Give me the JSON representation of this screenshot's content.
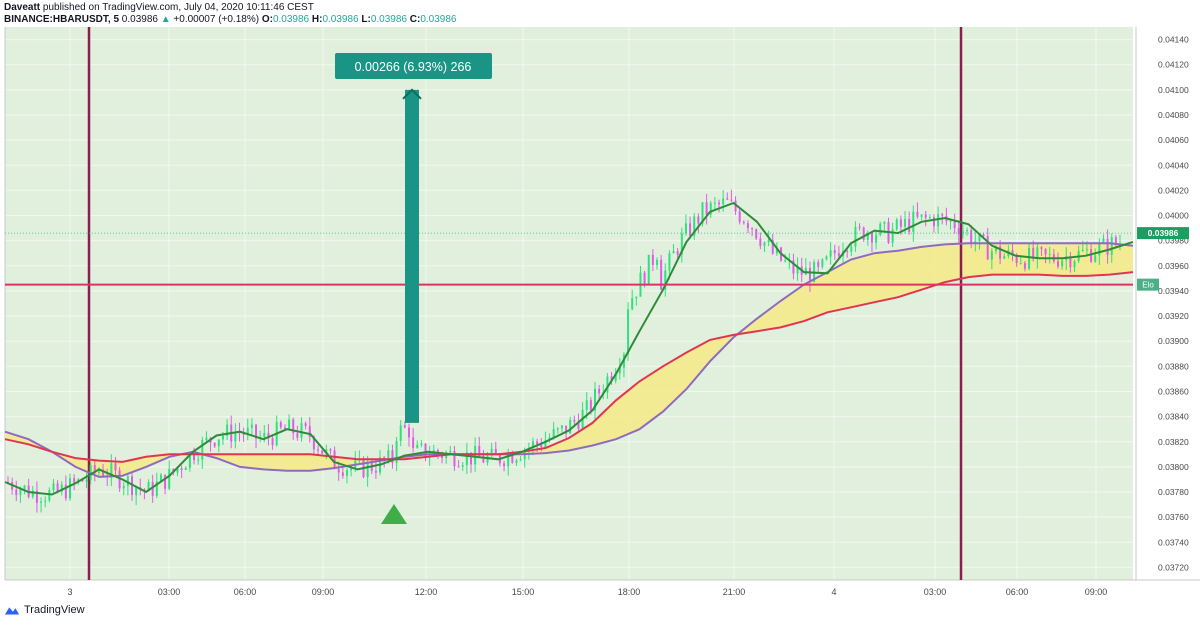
{
  "header": {
    "author": "Daveatt",
    "published_text": "published on TradingView.com, July 04, 2020 10:11:46 CEST",
    "symbol": "BINANCE:HBARUSDT, 5",
    "last_price": "0.03986",
    "change_arrow": "▲",
    "change": "+0.00007 (+0.18%)",
    "o_label": "O:",
    "o_value": "0.03986",
    "h_label": "H:",
    "h_value": "0.03986",
    "l_label": "L:",
    "l_value": "0.03986",
    "c_label": "C:",
    "c_value": "0.03986"
  },
  "footer": {
    "brand": "TradingView"
  },
  "chart_data": {
    "type": "line",
    "title": "",
    "xlabel": "",
    "ylabel": "",
    "ylim": [
      0.0371,
      0.0415
    ],
    "x_tick_labels": [
      "3",
      "03:00",
      "06:00",
      "09:00",
      "12:00",
      "15:00",
      "18:00",
      "21:00",
      "4",
      "03:00",
      "06:00",
      "09:00"
    ],
    "y_tick_labels": [
      "0.04140",
      "0.04120",
      "0.04100",
      "0.04080",
      "0.04060",
      "0.04040",
      "0.04020",
      "0.04000",
      "0.03980",
      "0.03960",
      "0.03940",
      "0.03920",
      "0.03900",
      "0.03880",
      "0.03860",
      "0.03840",
      "0.03820",
      "0.03800",
      "0.03780",
      "0.03760",
      "0.03740",
      "0.03720"
    ],
    "y_ticks": [
      0.0414,
      0.0412,
      0.041,
      0.0408,
      0.0406,
      0.0404,
      0.0402,
      0.04,
      0.0398,
      0.0396,
      0.0394,
      0.0392,
      0.039,
      0.0388,
      0.0386,
      0.0384,
      0.0382,
      0.038,
      0.0378,
      0.0376,
      0.0374,
      0.0372
    ],
    "current_price": 0.03986,
    "current_price_label": "0.03986",
    "support_level": 0.03945,
    "support_label": "Elo",
    "measure_label": "0.00266 (6.93%) 266",
    "measure_from": 0.03835,
    "measure_to": 0.041,
    "grid": true,
    "colors": {
      "background": "#e1f0dc",
      "candle_up": "#2fe07e",
      "candle_down": "#e05ce6",
      "ma_fast": "#2e8b3a",
      "ma_mid": "#e03552",
      "ma_slow": "#8e6bbf",
      "cloud": "#f5ea86",
      "vline": "#8a1e4e",
      "hline": "#e0306a",
      "measure": "#1a9484",
      "signal": "#3fae49"
    },
    "series": [
      {
        "name": "",
        "role": "ma_fast",
        "values": [
          0.03788,
          0.0378,
          0.03778,
          0.03787,
          0.03798,
          0.0379,
          0.0378,
          0.03793,
          0.03812,
          0.03825,
          0.03828,
          0.03822,
          0.0383,
          0.03826,
          0.03804,
          0.03798,
          0.03802,
          0.03809,
          0.03812,
          0.0381,
          0.03808,
          0.03806,
          0.03812,
          0.0382,
          0.03829,
          0.03845,
          0.03874,
          0.03908,
          0.03941,
          0.03979,
          0.04003,
          0.0401,
          0.03995,
          0.0397,
          0.03955,
          0.03954,
          0.03978,
          0.03988,
          0.03986,
          0.03995,
          0.03998,
          0.03993,
          0.03976,
          0.03968,
          0.03966,
          0.03966,
          0.03968,
          0.03973,
          0.03979
        ]
      },
      {
        "name": "",
        "role": "ma_mid",
        "values": [
          0.03822,
          0.03818,
          0.03812,
          0.03807,
          0.03805,
          0.03804,
          0.03808,
          0.0381,
          0.0381,
          0.0381,
          0.0381,
          0.0381,
          0.0381,
          0.0381,
          0.03808,
          0.03806,
          0.03806,
          0.03806,
          0.03808,
          0.0381,
          0.0381,
          0.0381,
          0.03812,
          0.03815,
          0.03823,
          0.03835,
          0.03853,
          0.03868,
          0.0388,
          0.03891,
          0.03901,
          0.03905,
          0.03908,
          0.03911,
          0.03916,
          0.03923,
          0.03927,
          0.03931,
          0.03935,
          0.03941,
          0.03947,
          0.03951,
          0.03953,
          0.03953,
          0.03953,
          0.03952,
          0.03952,
          0.03953,
          0.03955
        ]
      },
      {
        "name": "",
        "role": "ma_slow",
        "values": [
          0.03828,
          0.03822,
          0.03812,
          0.038,
          0.03792,
          0.03793,
          0.038,
          0.03808,
          0.03812,
          0.03807,
          0.038,
          0.03798,
          0.03797,
          0.03797,
          0.03799,
          0.03802,
          0.03805,
          0.03808,
          0.0381,
          0.0381,
          0.0381,
          0.0381,
          0.0381,
          0.03811,
          0.03813,
          0.03817,
          0.03822,
          0.0383,
          0.03844,
          0.03862,
          0.03884,
          0.03903,
          0.03918,
          0.03932,
          0.03945,
          0.03955,
          0.03965,
          0.0397,
          0.03972,
          0.03975,
          0.03977,
          0.03978,
          0.03978,
          0.03978,
          0.03978,
          0.03978,
          0.03978,
          0.03978,
          0.03976
        ]
      }
    ]
  }
}
